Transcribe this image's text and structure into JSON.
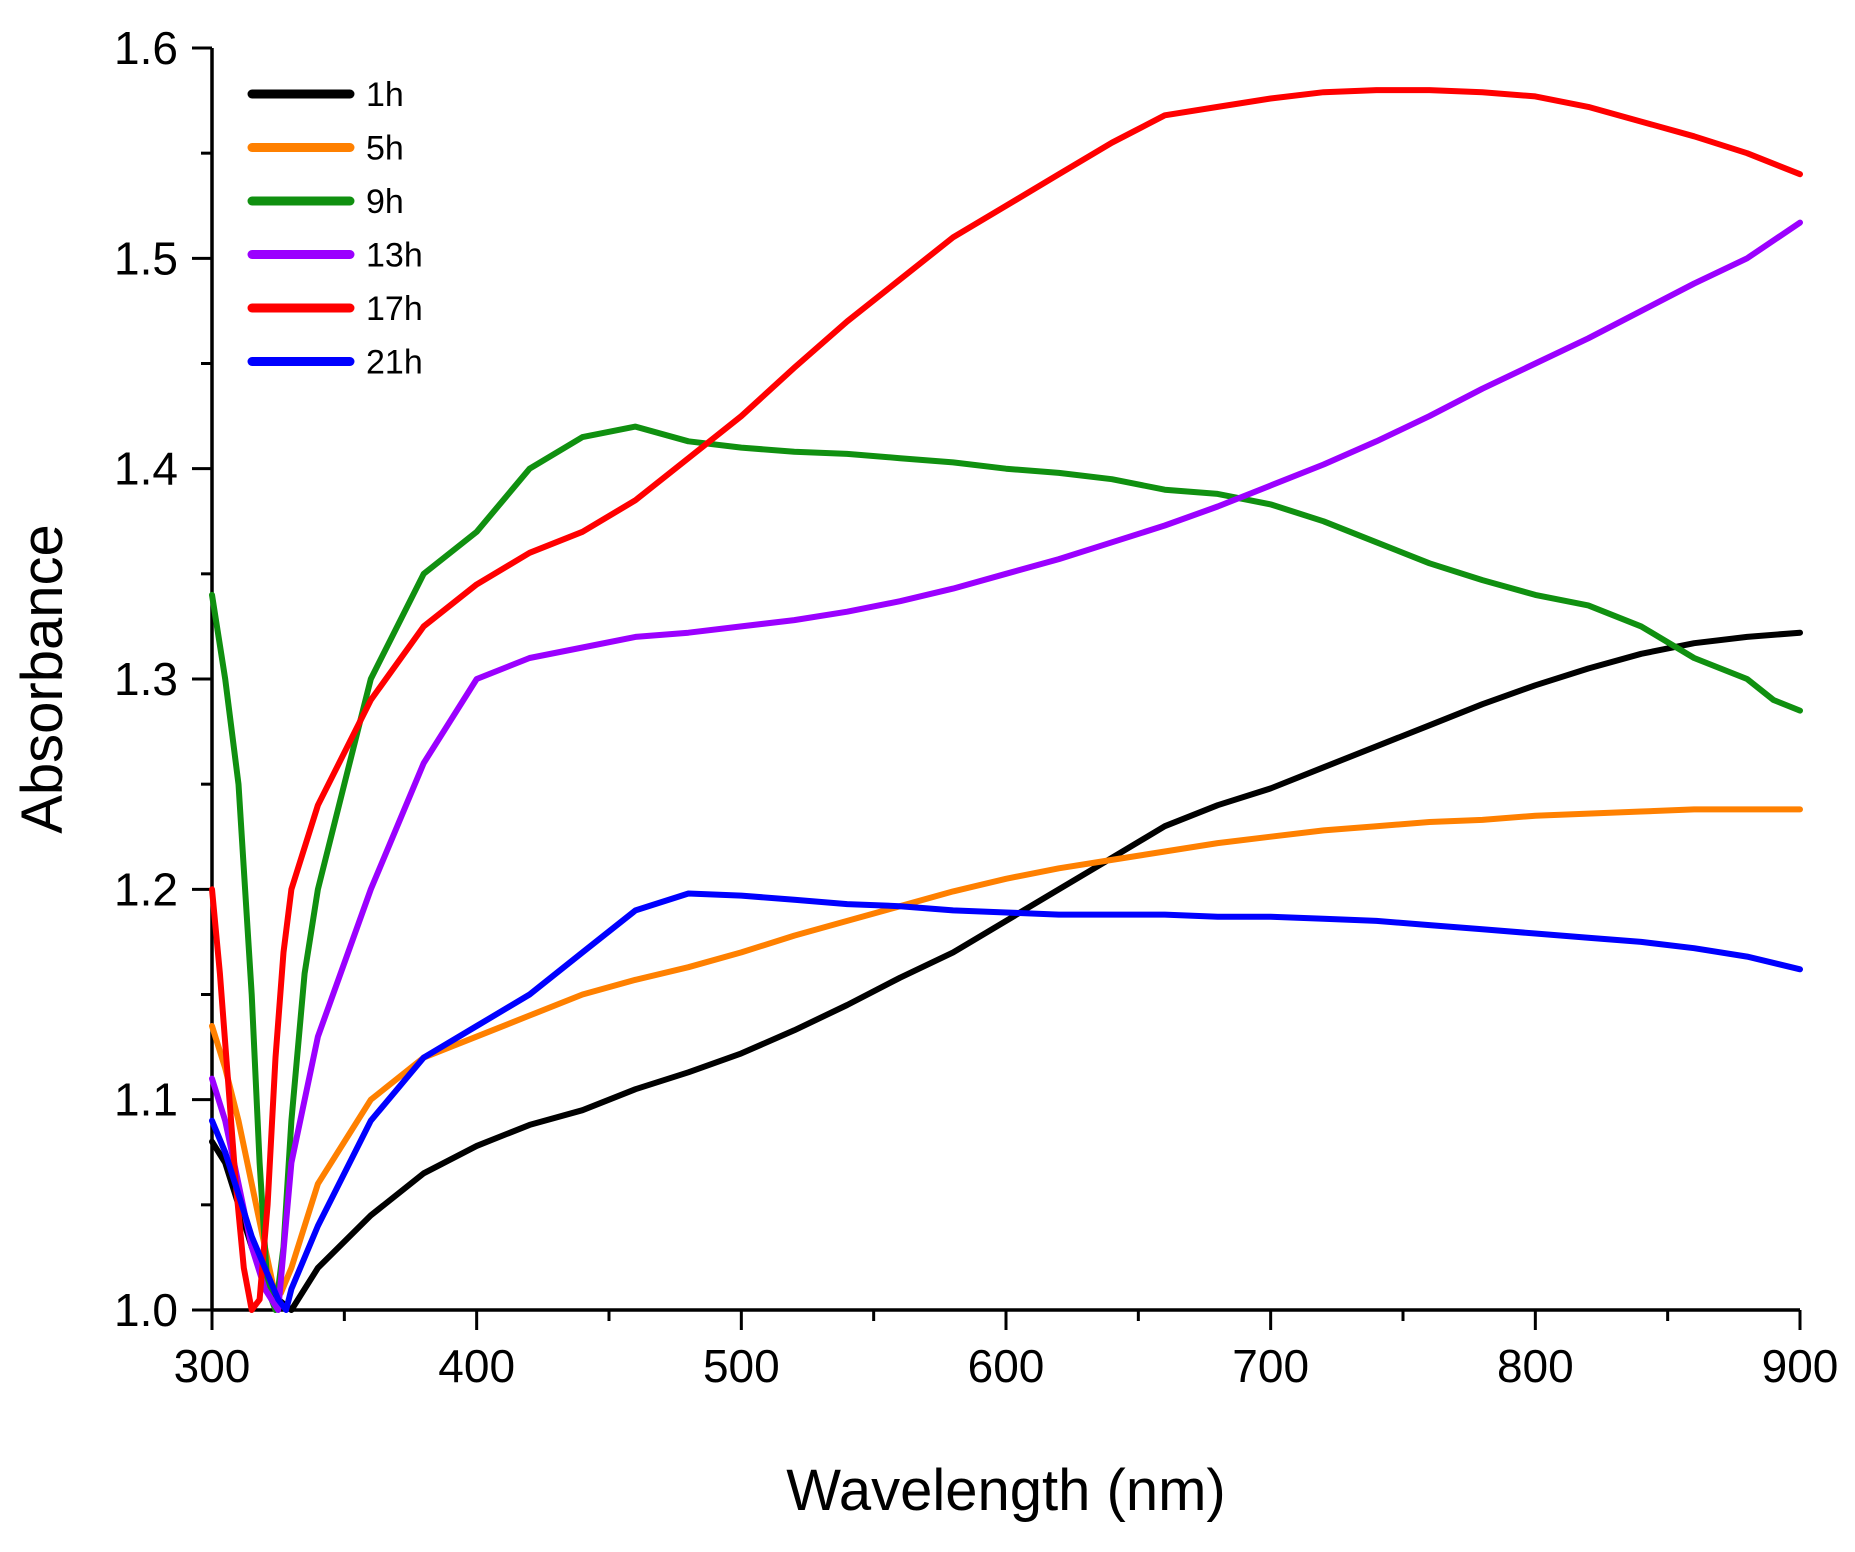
{
  "chart_data": {
    "type": "line",
    "title": "",
    "xlabel": "Wavelength (nm)",
    "ylabel": "Absorbance",
    "xlim": [
      300,
      900
    ],
    "ylim": [
      1.0,
      1.6
    ],
    "xticks": [
      "300",
      "400",
      "500",
      "600",
      "700",
      "800",
      "900"
    ],
    "yticks": [
      "1.0",
      "1.1",
      "1.2",
      "1.3",
      "1.4",
      "1.5",
      "1.6"
    ],
    "legend_position": "top-left",
    "series": [
      {
        "name": "1h",
        "color": "#000000",
        "x": [
          300,
          305,
          310,
          315,
          320,
          325,
          330,
          340,
          360,
          380,
          400,
          420,
          440,
          460,
          480,
          500,
          520,
          540,
          560,
          580,
          600,
          620,
          640,
          660,
          680,
          700,
          720,
          740,
          760,
          780,
          800,
          820,
          840,
          860,
          880,
          900
        ],
        "y": [
          1.08,
          1.07,
          1.05,
          1.03,
          1.015,
          1.005,
          1.0,
          1.02,
          1.045,
          1.065,
          1.078,
          1.088,
          1.095,
          1.105,
          1.113,
          1.122,
          1.133,
          1.145,
          1.158,
          1.17,
          1.185,
          1.2,
          1.215,
          1.23,
          1.24,
          1.248,
          1.258,
          1.268,
          1.278,
          1.288,
          1.297,
          1.305,
          1.312,
          1.317,
          1.32,
          1.322
        ]
      },
      {
        "name": "5h",
        "color": "#ff8000",
        "x": [
          300,
          305,
          310,
          315,
          320,
          323,
          326,
          330,
          340,
          360,
          380,
          400,
          420,
          440,
          460,
          480,
          500,
          520,
          540,
          560,
          580,
          600,
          620,
          640,
          660,
          680,
          700,
          720,
          740,
          760,
          780,
          800,
          820,
          840,
          860,
          880,
          900
        ],
        "y": [
          1.135,
          1.115,
          1.09,
          1.06,
          1.03,
          1.012,
          1.008,
          1.02,
          1.06,
          1.1,
          1.12,
          1.13,
          1.14,
          1.15,
          1.157,
          1.163,
          1.17,
          1.178,
          1.185,
          1.192,
          1.199,
          1.205,
          1.21,
          1.214,
          1.218,
          1.222,
          1.225,
          1.228,
          1.23,
          1.232,
          1.233,
          1.235,
          1.236,
          1.237,
          1.238,
          1.238,
          1.238
        ]
      },
      {
        "name": "9h",
        "color": "#109010",
        "x": [
          300,
          305,
          310,
          315,
          318,
          321,
          324,
          327,
          330,
          335,
          340,
          350,
          360,
          380,
          400,
          420,
          440,
          460,
          480,
          500,
          520,
          540,
          560,
          580,
          600,
          620,
          640,
          660,
          680,
          700,
          720,
          740,
          760,
          780,
          800,
          820,
          840,
          860,
          880,
          890,
          900
        ],
        "y": [
          1.34,
          1.3,
          1.25,
          1.15,
          1.07,
          1.01,
          1.0,
          1.03,
          1.09,
          1.16,
          1.2,
          1.25,
          1.3,
          1.35,
          1.37,
          1.4,
          1.415,
          1.42,
          1.413,
          1.41,
          1.408,
          1.407,
          1.405,
          1.403,
          1.4,
          1.398,
          1.395,
          1.39,
          1.388,
          1.383,
          1.375,
          1.365,
          1.355,
          1.347,
          1.34,
          1.335,
          1.325,
          1.31,
          1.3,
          1.29,
          1.285
        ]
      },
      {
        "name": "13h",
        "color": "#9b00ff",
        "x": [
          300,
          305,
          310,
          315,
          320,
          325,
          330,
          340,
          360,
          380,
          400,
          420,
          440,
          460,
          480,
          500,
          520,
          540,
          560,
          580,
          600,
          620,
          640,
          660,
          680,
          700,
          720,
          740,
          760,
          780,
          800,
          820,
          840,
          860,
          880,
          900
        ],
        "y": [
          1.11,
          1.09,
          1.06,
          1.03,
          1.01,
          1.0,
          1.07,
          1.13,
          1.2,
          1.26,
          1.3,
          1.31,
          1.315,
          1.32,
          1.322,
          1.325,
          1.328,
          1.332,
          1.337,
          1.343,
          1.35,
          1.357,
          1.365,
          1.373,
          1.382,
          1.392,
          1.402,
          1.413,
          1.425,
          1.438,
          1.45,
          1.462,
          1.475,
          1.488,
          1.5,
          1.517
        ]
      },
      {
        "name": "17h",
        "color": "#ff0000",
        "x": [
          300,
          303,
          306,
          309,
          312,
          315,
          318,
          321,
          324,
          327,
          330,
          340,
          360,
          380,
          400,
          420,
          440,
          460,
          480,
          500,
          520,
          540,
          560,
          580,
          600,
          620,
          640,
          660,
          680,
          700,
          720,
          740,
          760,
          780,
          800,
          820,
          840,
          860,
          880,
          900
        ],
        "y": [
          1.2,
          1.16,
          1.11,
          1.06,
          1.02,
          1.0,
          1.005,
          1.05,
          1.12,
          1.17,
          1.2,
          1.24,
          1.29,
          1.325,
          1.345,
          1.36,
          1.37,
          1.385,
          1.405,
          1.425,
          1.448,
          1.47,
          1.49,
          1.51,
          1.525,
          1.54,
          1.555,
          1.568,
          1.572,
          1.576,
          1.579,
          1.58,
          1.58,
          1.579,
          1.577,
          1.572,
          1.565,
          1.558,
          1.55,
          1.54
        ]
      },
      {
        "name": "21h",
        "color": "#0000ff",
        "x": [
          300,
          305,
          310,
          315,
          320,
          325,
          328,
          330,
          340,
          360,
          380,
          400,
          420,
          440,
          460,
          480,
          500,
          520,
          540,
          560,
          580,
          600,
          620,
          640,
          660,
          680,
          700,
          720,
          740,
          760,
          780,
          800,
          820,
          840,
          860,
          880,
          900
        ],
        "y": [
          1.09,
          1.075,
          1.055,
          1.035,
          1.02,
          1.005,
          1.0,
          1.01,
          1.04,
          1.09,
          1.12,
          1.135,
          1.15,
          1.17,
          1.19,
          1.198,
          1.197,
          1.195,
          1.193,
          1.192,
          1.19,
          1.189,
          1.188,
          1.188,
          1.188,
          1.187,
          1.187,
          1.186,
          1.185,
          1.183,
          1.181,
          1.179,
          1.177,
          1.175,
          1.172,
          1.168,
          1.162
        ]
      }
    ]
  }
}
